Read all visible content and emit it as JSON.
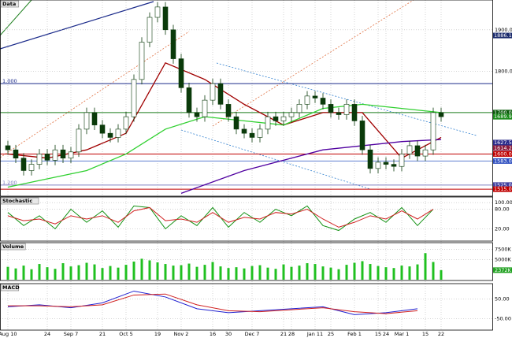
{
  "chart_data": [
    {
      "type": "candlestick",
      "title": "Data",
      "categories": [
        "Aug 10",
        null,
        null,
        null,
        null,
        "24",
        null,
        null,
        "Sep 7",
        null,
        null,
        null,
        "21",
        null,
        null,
        "Oct 5",
        null,
        null,
        null,
        "19",
        null,
        null,
        "Nov 2",
        null,
        null,
        null,
        "16",
        null,
        "30",
        null,
        null,
        "Dec 7",
        null,
        null,
        null,
        "21",
        "28",
        null,
        null,
        "Jan 11",
        null,
        "25",
        null,
        null,
        "Feb 1",
        null,
        null,
        "15",
        "24",
        null,
        "Mar 1",
        null,
        null,
        "15",
        null,
        "22"
      ],
      "open": [
        1620,
        1610,
        1590,
        1560,
        1575,
        1600,
        1585,
        1610,
        1590,
        1605,
        1660,
        1700,
        1670,
        1650,
        1640,
        1660,
        1690,
        1780,
        1870,
        1930,
        1955,
        1900,
        1830,
        1760,
        1700,
        1690,
        1730,
        1770,
        1720,
        1690,
        1660,
        1650,
        1640,
        1660,
        1690,
        1680,
        1690,
        1700,
        1720,
        1740,
        1735,
        1720,
        1700,
        1695,
        1720,
        1680,
        1610,
        1565,
        1580,
        1575,
        1570,
        1600,
        1620,
        1595,
        1610,
        1700
      ],
      "high": [
        1632,
        1622,
        1602,
        1587,
        1612,
        1612,
        1622,
        1622,
        1617,
        1672,
        1712,
        1712,
        1682,
        1662,
        1672,
        1702,
        1792,
        1882,
        1942,
        1967,
        1967,
        1912,
        1842,
        1772,
        1712,
        1742,
        1782,
        1782,
        1732,
        1702,
        1672,
        1662,
        1672,
        1702,
        1702,
        1702,
        1712,
        1732,
        1752,
        1752,
        1747,
        1732,
        1712,
        1732,
        1732,
        1692,
        1622,
        1592,
        1592,
        1587,
        1612,
        1632,
        1632,
        1622,
        1712,
        1712
      ],
      "low": [
        1598,
        1578,
        1548,
        1548,
        1563,
        1573,
        1573,
        1578,
        1578,
        1593,
        1648,
        1658,
        1638,
        1628,
        1628,
        1648,
        1678,
        1768,
        1858,
        1918,
        1888,
        1818,
        1748,
        1688,
        1678,
        1678,
        1718,
        1708,
        1678,
        1648,
        1638,
        1628,
        1628,
        1648,
        1668,
        1668,
        1678,
        1688,
        1708,
        1723,
        1708,
        1688,
        1683,
        1683,
        1668,
        1598,
        1553,
        1553,
        1563,
        1558,
        1558,
        1588,
        1583,
        1583,
        1598,
        1678
      ],
      "close": [
        1610,
        1590,
        1560,
        1575,
        1600,
        1585,
        1610,
        1590,
        1605,
        1660,
        1700,
        1670,
        1650,
        1640,
        1660,
        1690,
        1780,
        1870,
        1930,
        1955,
        1900,
        1830,
        1760,
        1700,
        1690,
        1730,
        1770,
        1720,
        1690,
        1660,
        1650,
        1640,
        1660,
        1690,
        1680,
        1690,
        1700,
        1720,
        1740,
        1735,
        1720,
        1700,
        1695,
        1720,
        1680,
        1610,
        1565,
        1580,
        1575,
        1570,
        1600,
        1620,
        1595,
        1610,
        1700,
        1690
      ],
      "up_color": "#ffffff",
      "down_color": "#0a3a0a",
      "overlays": [
        {
          "color": "#a00000",
          "x": [
            0,
            5,
            10,
            15,
            20,
            25,
            30,
            35,
            40,
            45,
            50,
            55
          ],
          "values": [
            1600,
            1590,
            1610,
            1650,
            1820,
            1780,
            1720,
            1670,
            1700,
            1700,
            1590,
            1640
          ]
        },
        {
          "color": "#30d030",
          "x": [
            0,
            5,
            10,
            15,
            20,
            25,
            30,
            35,
            40,
            45,
            50,
            55
          ],
          "values": [
            1520,
            1540,
            1560,
            1600,
            1660,
            1690,
            1680,
            1670,
            1710,
            1720,
            1710,
            1700
          ]
        },
        {
          "color": "#5000a0",
          "x": [
            22,
            30,
            40,
            50,
            55
          ],
          "values": [
            1505,
            1560,
            1610,
            1630,
            1635
          ]
        }
      ],
      "levels": [
        {
          "value": 1770,
          "color": "#1a2a8a",
          "label": "1.000"
        },
        {
          "value": 1700,
          "color": "#1a7a1a"
        },
        {
          "value": 1600,
          "color": "#c00000"
        },
        {
          "value": 1583,
          "color": "#6080d0"
        },
        {
          "value": 1525,
          "color": "#8080c0",
          "label": "1.200"
        },
        {
          "value": 1515,
          "color": "#c00000"
        }
      ],
      "ylim": [
        1500,
        1970
      ],
      "yticks": [
        {
          "value": 1900,
          "label": "1900.00"
        },
        {
          "value": 1800,
          "label": "1800.00"
        }
      ],
      "price_labels": [
        {
          "value": 1886.16,
          "label": "1886.16",
          "color": "#1a2a6c"
        },
        {
          "value": 1700,
          "label": "1700.00",
          "color": "#0a5a0a"
        },
        {
          "value": 1689.96,
          "label": "1689.96",
          "color": "#1a8a1a"
        },
        {
          "value": 1627.58,
          "label": "1627.58",
          "color": "#2a2a8a"
        },
        {
          "value": 1614.2,
          "label": "1614.20",
          "color": "#8a1a3a"
        },
        {
          "value": 1600,
          "label": "1600.00",
          "color": "#c00000"
        },
        {
          "value": 1583,
          "label": "1583.00",
          "color": "#3050c0"
        },
        {
          "value": 1525,
          "label": "1525.00",
          "color": "#4040a0"
        },
        {
          "value": 1515,
          "label": "1515.00",
          "color": "#c00000"
        }
      ]
    },
    {
      "type": "line",
      "title": "Stochastic",
      "ylim": [
        -15,
        115
      ],
      "yticks": [
        {
          "value": 100,
          "label": "100.00"
        },
        {
          "value": 80,
          "label": "80.00"
        },
        {
          "value": 20,
          "label": "20.00"
        }
      ],
      "x": [
        0,
        2,
        4,
        6,
        8,
        10,
        12,
        14,
        16,
        18,
        20,
        22,
        24,
        26,
        28,
        30,
        32,
        34,
        36,
        38,
        40,
        42,
        44,
        46,
        48,
        50,
        52,
        54
      ],
      "series": [
        {
          "color": "#109010",
          "values": [
            70,
            30,
            60,
            20,
            80,
            40,
            75,
            25,
            90,
            85,
            20,
            60,
            30,
            85,
            25,
            70,
            40,
            80,
            60,
            90,
            30,
            15,
            50,
            70,
            40,
            85,
            30,
            80
          ]
        },
        {
          "color": "#d02020",
          "values": [
            60,
            45,
            50,
            35,
            60,
            50,
            60,
            40,
            75,
            85,
            45,
            50,
            40,
            70,
            40,
            55,
            50,
            70,
            65,
            80,
            50,
            25,
            40,
            60,
            50,
            75,
            50,
            80
          ]
        }
      ]
    },
    {
      "type": "bar",
      "title": "Volume",
      "color": "#20c020",
      "ylim": [
        0,
        9000
      ],
      "yticks": [
        {
          "value": 7500,
          "label": "7500K"
        },
        {
          "value": 5000,
          "label": "5000K"
        }
      ],
      "values": [
        3200,
        2800,
        3500,
        2600,
        3900,
        3100,
        2700,
        4100,
        3300,
        3600,
        4200,
        3800,
        2900,
        3400,
        3000,
        3700,
        4500,
        5200,
        4800,
        4300,
        3900,
        3500,
        3600,
        4000,
        3200,
        3700,
        4400,
        3300,
        2900,
        3100,
        2800,
        3400,
        3600,
        3000,
        2700,
        3800,
        3200,
        3500,
        4100,
        3900,
        3300,
        3000,
        2600,
        3700,
        4200,
        4600,
        3900,
        3400,
        3100,
        2900,
        3500,
        3300,
        3800,
        6600,
        4400,
        2372
      ],
      "last_label": {
        "value": 2372,
        "label": "2372K",
        "color": "#20a020"
      }
    },
    {
      "type": "line",
      "title": "MACD",
      "ylim": [
        -105,
        124
      ],
      "yticks": [
        {
          "value": 50,
          "label": "50.00"
        },
        {
          "value": -50,
          "label": "-50.00"
        }
      ],
      "x": [
        0,
        4,
        8,
        12,
        16,
        20,
        24,
        28,
        32,
        36,
        40,
        44,
        48,
        52
      ],
      "series": [
        {
          "color": "#2020d0",
          "values": [
            10,
            20,
            5,
            30,
            90,
            60,
            0,
            -20,
            -10,
            0,
            10,
            -30,
            -20,
            0
          ]
        },
        {
          "color": "#d02020",
          "values": [
            15,
            15,
            10,
            20,
            70,
            75,
            20,
            -10,
            -15,
            -5,
            5,
            -15,
            -25,
            -10
          ]
        }
      ]
    }
  ]
}
